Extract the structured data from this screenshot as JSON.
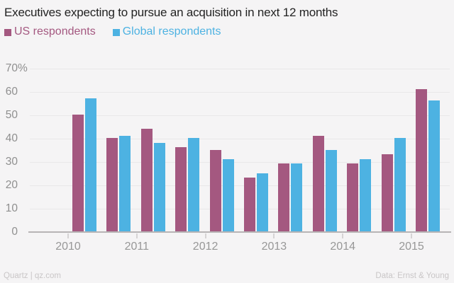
{
  "header": {
    "title": "Executives expecting to pursue an acquisition in next 12 months"
  },
  "legend": [
    {
      "label": "US respondents",
      "color": "#a45880"
    },
    {
      "label": "Global respondents",
      "color": "#4db2e2"
    }
  ],
  "chart_data": {
    "type": "bar",
    "title": "Executives expecting to pursue an acquisition in next 12 months",
    "x_tick_labels": [
      "2010",
      "2011",
      "2012",
      "2013",
      "2014",
      "2015"
    ],
    "groups_per_year_tick": 2,
    "num_groups": 11,
    "series": [
      {
        "name": "US respondents",
        "color": "#a45880",
        "values": [
          50,
          40,
          44,
          36,
          35,
          23,
          29,
          41,
          29,
          33,
          61
        ]
      },
      {
        "name": "Global respondents",
        "color": "#4db2e2",
        "values": [
          57,
          41,
          38,
          40,
          31,
          25,
          29,
          35,
          31,
          40,
          56
        ]
      }
    ],
    "ylim": [
      0,
      70
    ],
    "y_tick_step": 10,
    "y_top_tick_suffix": "%",
    "grid": true,
    "legend_position": "top-left"
  },
  "footer": {
    "left": "Quartz | qz.com",
    "right": "Data: Ernst & Young"
  }
}
